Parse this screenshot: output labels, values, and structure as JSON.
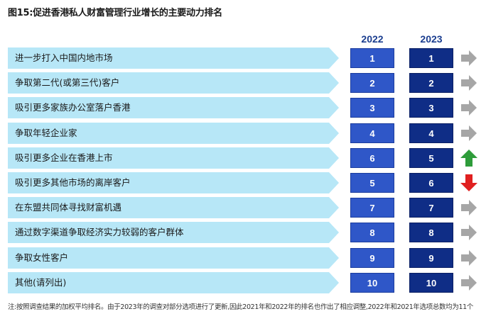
{
  "title": "图15:促进香港私人财富管理行业增长的主要动力排名",
  "columns": {
    "y2022": "2022",
    "y2023": "2023"
  },
  "footnote": "注:按照调查结果的加权平均排名。由于2023年的调查对部分选项进行了更新,因此2021年和2022年的排名也作出了相应调整,2022年和2021年选项总数均为11个",
  "colors": {
    "label_fill": "#b7e7f7",
    "rank_2022": "#2f57c8",
    "rank_2023": "#0f2d86",
    "trend_same": "#a6a6a6",
    "trend_up": "#2e9c3a",
    "trend_down": "#e02020"
  },
  "chart_data": {
    "type": "table",
    "columns": [
      "2022",
      "2023"
    ],
    "rows": [
      {
        "label": "进一步打入中国内地市场",
        "rank_2022": "1",
        "rank_2023": "1",
        "trend": "same",
        "trend_icon": "arrow-right-icon"
      },
      {
        "label": "争取第二代(或第三代)客户",
        "rank_2022": "2",
        "rank_2023": "2",
        "trend": "same",
        "trend_icon": "arrow-right-icon"
      },
      {
        "label": "吸引更多家族办公室落户香港",
        "rank_2022": "3",
        "rank_2023": "3",
        "trend": "same",
        "trend_icon": "arrow-right-icon"
      },
      {
        "label": "争取年轻企业家",
        "rank_2022": "4",
        "rank_2023": "4",
        "trend": "same",
        "trend_icon": "arrow-right-icon"
      },
      {
        "label": "吸引更多企业在香港上市",
        "rank_2022": "6",
        "rank_2023": "5",
        "trend": "up",
        "trend_icon": "arrow-up-icon"
      },
      {
        "label": "吸引更多其他市场的离岸客户",
        "rank_2022": "5",
        "rank_2023": "6",
        "trend": "down",
        "trend_icon": "arrow-down-icon"
      },
      {
        "label": "在东盟共同体寻找财富机遇",
        "rank_2022": "7",
        "rank_2023": "7",
        "trend": "same",
        "trend_icon": "arrow-right-icon"
      },
      {
        "label": "通过数字渠道争取经济实力较弱的客户群体",
        "rank_2022": "8",
        "rank_2023": "8",
        "trend": "same",
        "trend_icon": "arrow-right-icon"
      },
      {
        "label": "争取女性客户",
        "rank_2022": "9",
        "rank_2023": "9",
        "trend": "same",
        "trend_icon": "arrow-right-icon"
      },
      {
        "label": "其他(请列出)",
        "rank_2022": "10",
        "rank_2023": "10",
        "trend": "same",
        "trend_icon": "arrow-right-icon"
      }
    ]
  }
}
